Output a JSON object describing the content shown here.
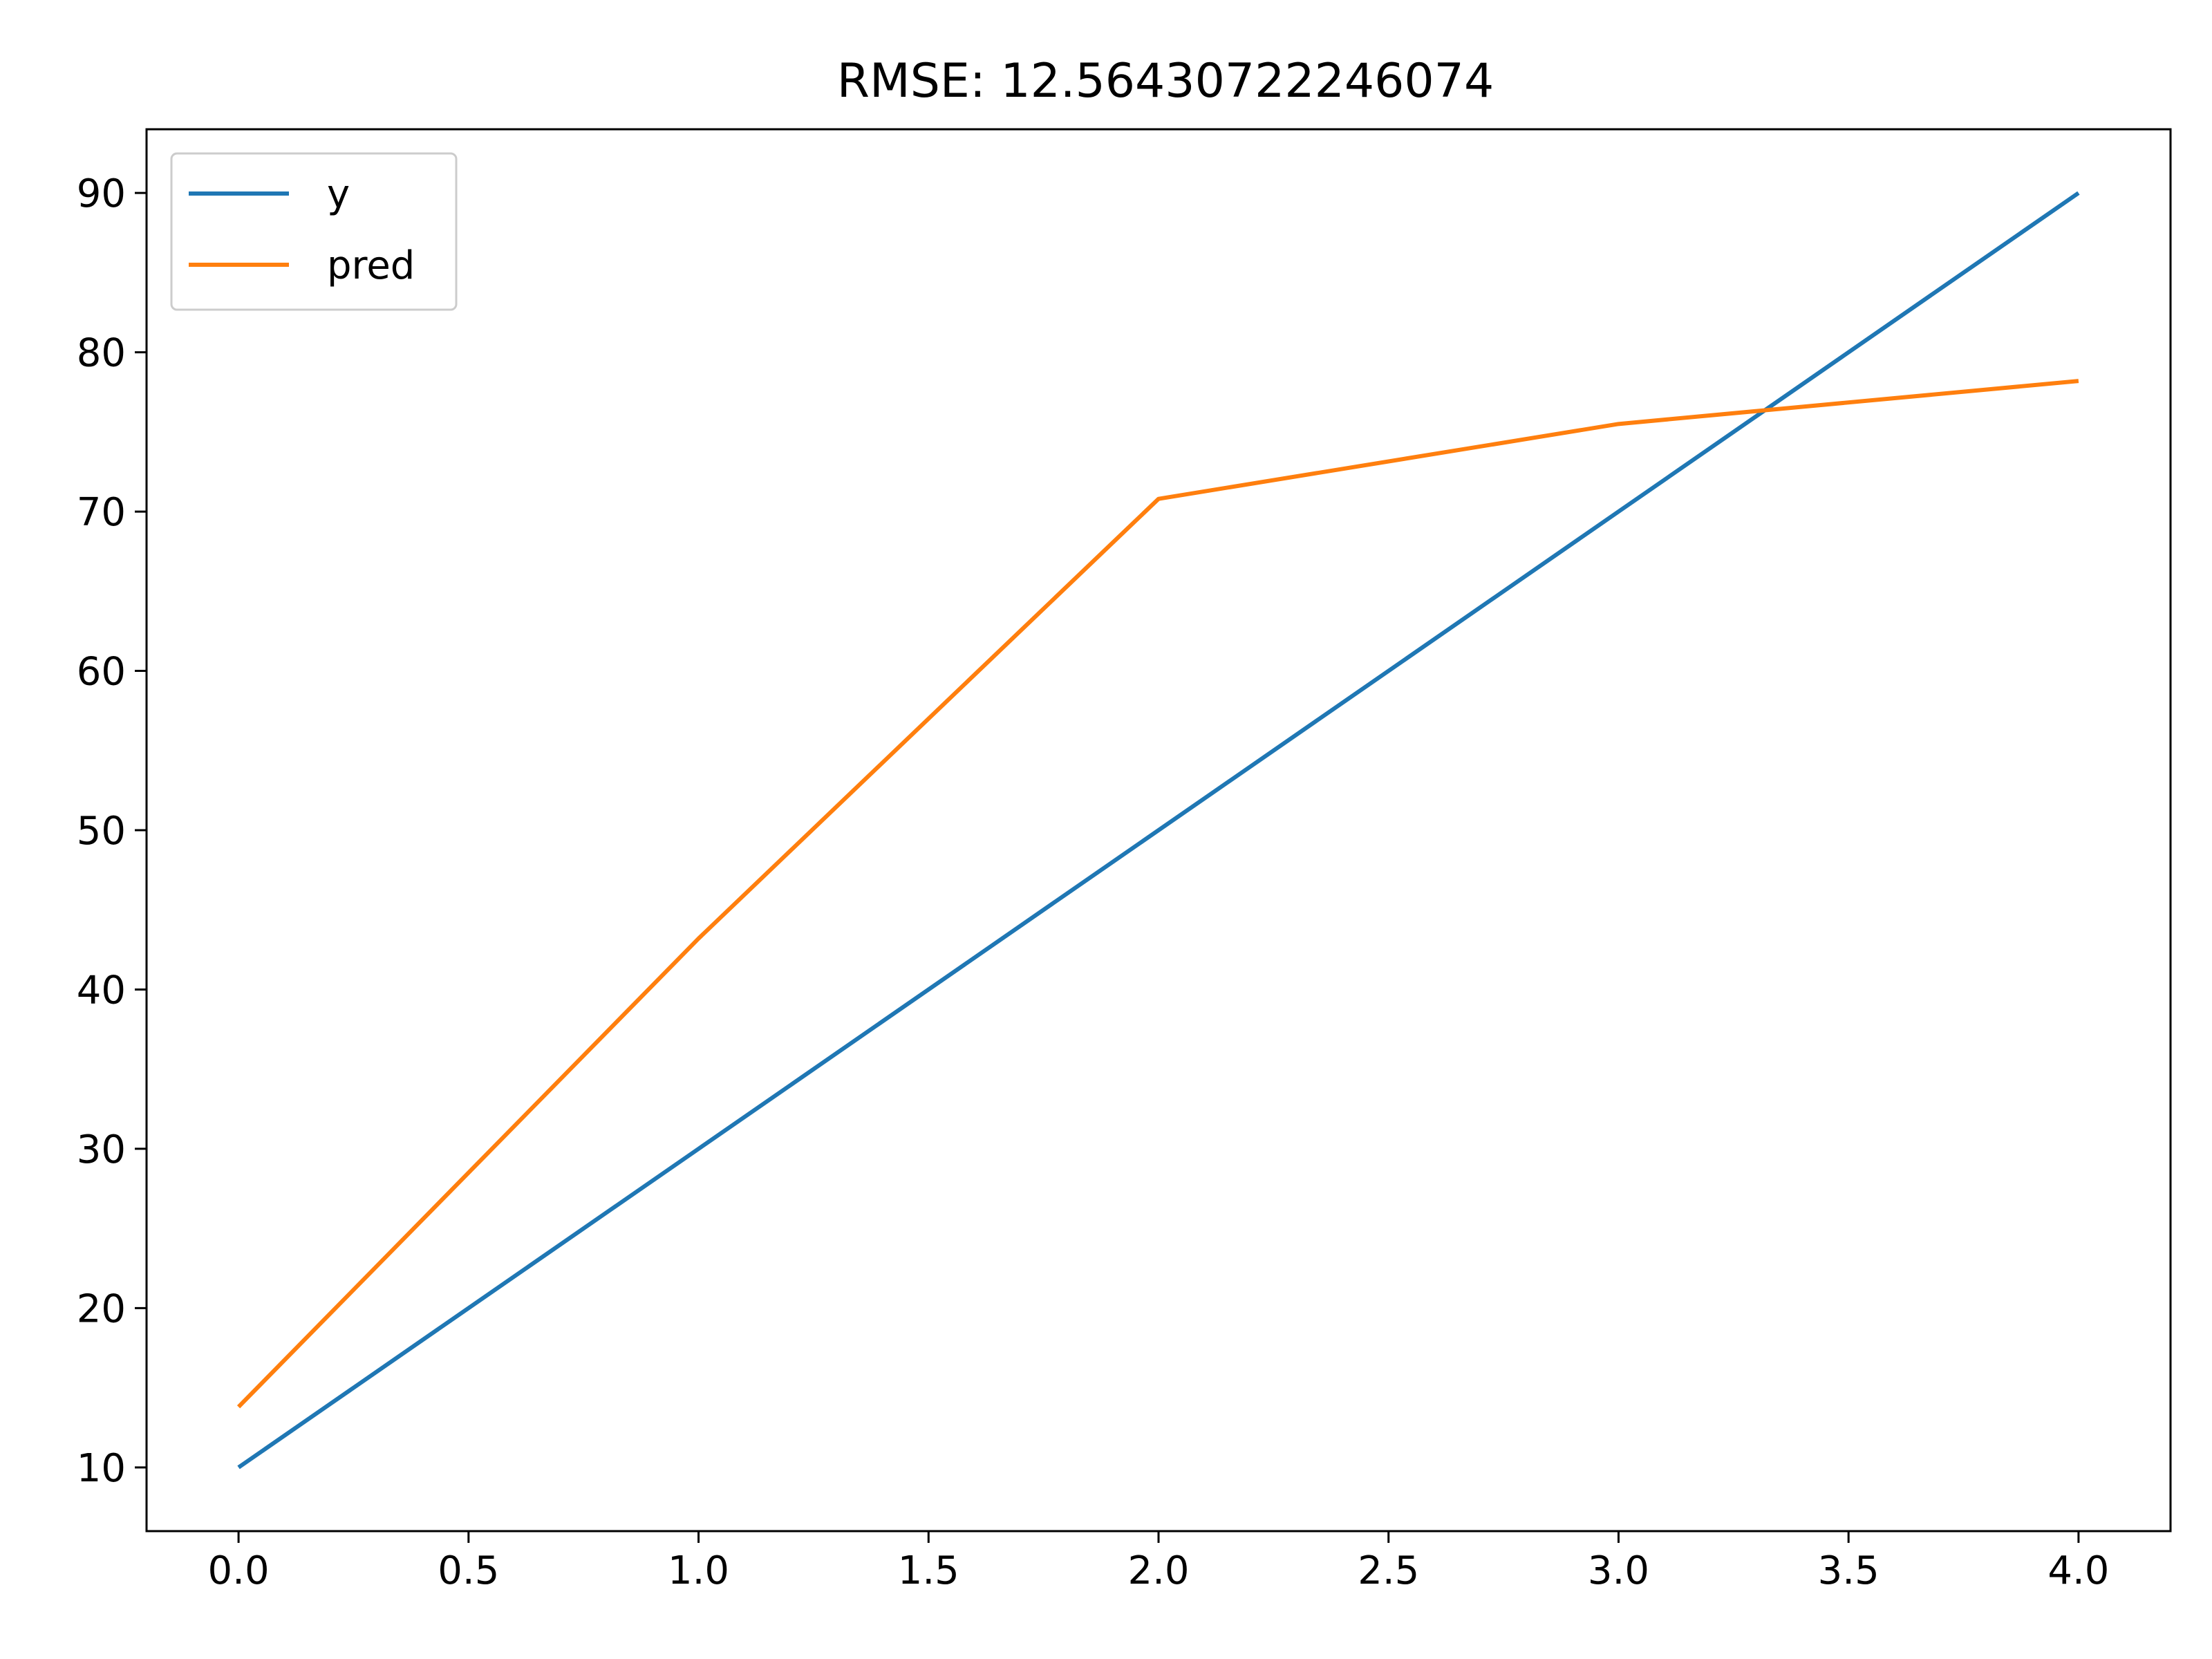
{
  "chart_data": {
    "type": "line",
    "title": "RMSE: 12.56430722246074",
    "xlabel": "",
    "ylabel": "",
    "x": [
      0,
      1,
      2,
      3,
      4
    ],
    "xlim": [
      -0.2,
      4.2
    ],
    "ylim": [
      6,
      94
    ],
    "xticks": [
      0.0,
      0.5,
      1.0,
      1.5,
      2.0,
      2.5,
      3.0,
      3.5,
      4.0
    ],
    "xtick_labels": [
      "0.0",
      "0.5",
      "1.0",
      "1.5",
      "2.0",
      "2.5",
      "3.0",
      "3.5",
      "4.0"
    ],
    "yticks": [
      10,
      20,
      30,
      40,
      50,
      60,
      70,
      80,
      90
    ],
    "ytick_labels": [
      "10",
      "20",
      "30",
      "40",
      "50",
      "60",
      "70",
      "80",
      "90"
    ],
    "grid": false,
    "legend_position": "top-left",
    "series": [
      {
        "name": "y",
        "color": "#1f77b4",
        "values": [
          10,
          30,
          50,
          70,
          90
        ]
      },
      {
        "name": "pred",
        "color": "#ff7f0e",
        "values": [
          13.8,
          43.2,
          70.8,
          75.5,
          78.2
        ]
      }
    ]
  }
}
